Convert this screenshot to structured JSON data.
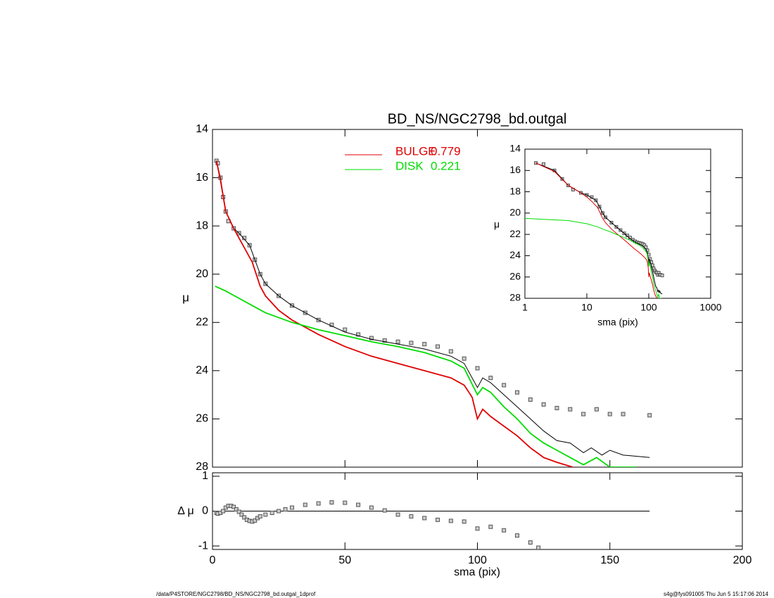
{
  "footer_left": "/data/P4STORE/NGC2798/BD_NS/NGC2798_bd.outgal_1dprof",
  "footer_right": "s4g@fys091005  Thu Jun  5 15:17:06 2014",
  "chart_data": [
    {
      "type": "line",
      "title": "BD_NS/NGC2798_bd.outgal",
      "ylabel": "μ",
      "xlim": [
        0,
        200
      ],
      "xticks": [
        0,
        50,
        100,
        150,
        200
      ],
      "ylim": [
        14,
        28
      ],
      "yticks": [
        14,
        16,
        18,
        20,
        22,
        24,
        26,
        28
      ],
      "y_inverted": true,
      "series": [
        {
          "color": "#555555",
          "marker": "square",
          "x": [
            1.5,
            2,
            3,
            4,
            5,
            6,
            8,
            10,
            12,
            14,
            16,
            18,
            20,
            25,
            30,
            35,
            40,
            45,
            50,
            55,
            60,
            65,
            70,
            75,
            80,
            85,
            90,
            95,
            100,
            105,
            110,
            115,
            120,
            125,
            130,
            135,
            140,
            145,
            150,
            155,
            165
          ],
          "values": [
            15.3,
            15.4,
            16.0,
            16.8,
            17.4,
            17.8,
            18.1,
            18.3,
            18.5,
            18.8,
            19.4,
            20.0,
            20.4,
            20.9,
            21.3,
            21.6,
            21.9,
            22.1,
            22.3,
            22.5,
            22.65,
            22.75,
            22.8,
            22.85,
            22.9,
            23.0,
            23.2,
            23.5,
            23.9,
            24.3,
            24.6,
            24.9,
            25.2,
            25.4,
            25.55,
            25.6,
            25.8,
            25.6,
            25.8,
            25.8,
            25.85
          ]
        },
        {
          "color": "#000000",
          "x": [
            1.5,
            3,
            5,
            8,
            10,
            14,
            16,
            18,
            20,
            25,
            30,
            40,
            50,
            60,
            70,
            80,
            90,
            95,
            100,
            102,
            105,
            110,
            115,
            120,
            125,
            130,
            135,
            140,
            143,
            147,
            150,
            155,
            165
          ],
          "values": [
            15.3,
            16.0,
            17.4,
            18.1,
            18.3,
            18.8,
            19.4,
            20.0,
            20.4,
            20.9,
            21.3,
            21.9,
            22.4,
            22.7,
            22.9,
            23.1,
            23.4,
            23.7,
            24.7,
            24.3,
            24.5,
            25.0,
            25.5,
            26.0,
            26.5,
            26.9,
            27.0,
            27.4,
            27.2,
            27.5,
            27.3,
            27.5,
            27.6
          ]
        },
        {
          "name": "BULGE",
          "fraction": 0.779,
          "color": "#e00000",
          "x": [
            1.5,
            3,
            5,
            8,
            10,
            12,
            15,
            18,
            20,
            25,
            30,
            40,
            50,
            60,
            70,
            80,
            90,
            95,
            98,
            100,
            102,
            105,
            110,
            115,
            120,
            125,
            130,
            136
          ],
          "values": [
            15.3,
            16.1,
            17.4,
            18.1,
            18.5,
            18.9,
            19.5,
            20.5,
            20.9,
            21.5,
            21.9,
            22.5,
            23.0,
            23.4,
            23.7,
            24.0,
            24.3,
            24.6,
            25.1,
            26.0,
            25.6,
            25.9,
            26.3,
            26.7,
            27.2,
            27.6,
            27.8,
            28.0
          ]
        },
        {
          "name": "DISK",
          "fraction": 0.221,
          "color": "#00dd00",
          "x": [
            1,
            5,
            10,
            15,
            20,
            25,
            30,
            40,
            50,
            60,
            70,
            80,
            90,
            95,
            100,
            102,
            105,
            110,
            115,
            120,
            125,
            130,
            135,
            140,
            145,
            150,
            160
          ],
          "values": [
            20.5,
            20.7,
            21.0,
            21.3,
            21.6,
            21.8,
            22.0,
            22.3,
            22.55,
            22.8,
            23.0,
            23.25,
            23.6,
            23.9,
            25.0,
            24.7,
            24.9,
            25.5,
            26.0,
            26.6,
            27.0,
            27.3,
            27.6,
            27.9,
            27.6,
            28.0,
            28.0
          ]
        }
      ]
    },
    {
      "type": "line",
      "ylabel": "μ",
      "xlabel": "sma (pix)",
      "log_x": true,
      "xlim": [
        1,
        1000
      ],
      "xticks": [
        1,
        10,
        100,
        1000
      ],
      "ylim": [
        14,
        28
      ],
      "yticks": [
        14,
        16,
        18,
        20,
        22,
        24,
        26,
        28
      ],
      "y_inverted": true
    },
    {
      "type": "scatter",
      "ylabel": "Δ μ",
      "xlabel": "sma (pix)",
      "xlim": [
        0,
        200
      ],
      "xticks": [
        0,
        50,
        100,
        150,
        200
      ],
      "ylim": [
        -1.1,
        1.1
      ],
      "yticks": [
        -1,
        0,
        1
      ],
      "color": "#555555",
      "x": [
        1.5,
        2,
        3,
        4,
        5,
        6,
        7,
        8,
        9,
        10,
        11,
        12,
        13,
        14,
        15,
        16,
        17,
        18,
        20,
        22.5,
        25,
        27.5,
        30,
        35,
        40,
        45,
        50,
        55,
        60,
        65,
        70,
        75,
        80,
        85,
        90,
        95,
        100,
        105,
        110,
        115,
        120,
        123
      ],
      "values": [
        -0.05,
        -0.07,
        -0.05,
        0.0,
        0.1,
        0.15,
        0.15,
        0.12,
        0.05,
        -0.02,
        -0.1,
        -0.18,
        -0.25,
        -0.28,
        -0.3,
        -0.27,
        -0.2,
        -0.15,
        -0.1,
        -0.05,
        0.0,
        0.05,
        0.1,
        0.18,
        0.22,
        0.25,
        0.24,
        0.18,
        0.1,
        0.02,
        -0.1,
        -0.15,
        -0.2,
        -0.25,
        -0.28,
        -0.3,
        -0.5,
        -0.45,
        -0.55,
        -0.7,
        -0.9,
        -1.05
      ]
    }
  ]
}
